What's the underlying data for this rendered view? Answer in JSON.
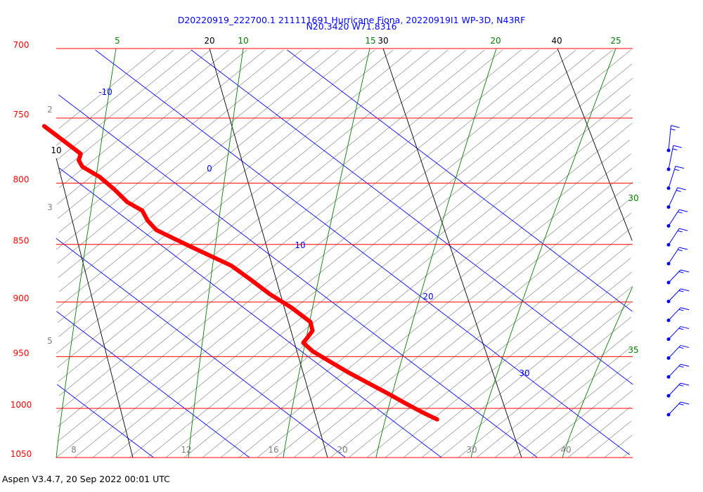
{
  "title": {
    "line1": "D20220919_222700.1 211111691 Hurricane Fiona, 20220919I1 WP-3D, N43RF",
    "line2": "N20.3420 W71.8316"
  },
  "footer": "Aspen V3.4.7, 20 Sep 2022  00:01 UTC",
  "colors": {
    "isobar": "#ff0000",
    "isotherm": "#0000ff",
    "dry_adiabat": "#000000",
    "moist_adiabat": "#008000",
    "mixing_ratio": "#808080",
    "sounding": "#ff0000",
    "wind_barb": "#0000ff"
  },
  "chart_data": {
    "type": "line",
    "chart_kind": "skew-T log-P thermodynamic diagram",
    "y_axis": {
      "quantity": "pressure",
      "scale": "log",
      "range": [
        1050,
        700
      ],
      "tick_labels": [
        "700",
        "750",
        "800",
        "850",
        "900",
        "950",
        "1000",
        "1050"
      ]
    },
    "isotherms": [
      {
        "label": "-10",
        "value": -10
      },
      {
        "label": "0",
        "value": 0
      },
      {
        "label": "10",
        "value": 10
      },
      {
        "label": "20",
        "value": 20
      },
      {
        "label": "30",
        "value": 30
      }
    ],
    "dry_adiabats": [
      {
        "label": "10",
        "value": 10
      },
      {
        "label": "20",
        "value": 20
      },
      {
        "label": "30",
        "value": 30
      },
      {
        "label": "40",
        "value": 40
      }
    ],
    "moist_adiabats": [
      {
        "label": "5",
        "value": 5
      },
      {
        "label": "10",
        "value": 10
      },
      {
        "label": "15",
        "value": 15
      },
      {
        "label": "20",
        "value": 20
      },
      {
        "label": "25",
        "value": 25
      },
      {
        "label": "30",
        "value": 30
      },
      {
        "label": "35",
        "value": 35
      }
    ],
    "mixing_ratio_labels_left": [
      "2",
      "3",
      "5"
    ],
    "mixing_ratio_labels_bottom": [
      "8",
      "12",
      "16",
      "20",
      "30",
      "40"
    ],
    "series": [
      {
        "points": [
          {
            "p": 1011,
            "t": 24.8
          },
          {
            "p": 1005,
            "t": 24.3
          },
          {
            "p": 995,
            "t": 23.7
          },
          {
            "p": 985,
            "t": 23.2
          },
          {
            "p": 975,
            "t": 22.6
          },
          {
            "p": 965,
            "t": 22.0
          },
          {
            "p": 955,
            "t": 21.6
          },
          {
            "p": 945,
            "t": 21.2
          },
          {
            "p": 937,
            "t": 21.4
          },
          {
            "p": 932,
            "t": 22.6
          },
          {
            "p": 926,
            "t": 24.0
          },
          {
            "p": 918,
            "t": 25.0
          },
          {
            "p": 905,
            "t": 25.0
          },
          {
            "p": 893,
            "t": 24.6
          },
          {
            "p": 880,
            "t": 24.6
          },
          {
            "p": 868,
            "t": 24.5
          },
          {
            "p": 852,
            "t": 22.9
          },
          {
            "p": 838,
            "t": 21.6
          },
          {
            "p": 830,
            "t": 22.0
          },
          {
            "p": 822,
            "t": 22.8
          },
          {
            "p": 815,
            "t": 22.4
          },
          {
            "p": 805,
            "t": 22.8
          },
          {
            "p": 795,
            "t": 23.0
          },
          {
            "p": 787,
            "t": 22.6
          },
          {
            "p": 782,
            "t": 23.1
          },
          {
            "p": 777,
            "t": 24.2
          },
          {
            "p": 769,
            "t": 24.2
          },
          {
            "p": 762,
            "t": 24.2
          },
          {
            "p": 756,
            "t": 24.2
          }
        ]
      }
    ],
    "wind_barbs": [
      {
        "p": 1004,
        "dir": 60,
        "speed": 15
      },
      {
        "p": 997,
        "dir": 60,
        "speed": 15
      },
      {
        "p": 990,
        "dir": 60,
        "speed": 15
      },
      {
        "p": 982,
        "dir": 60,
        "speed": 15
      },
      {
        "p": 974,
        "dir": 60,
        "speed": 15
      },
      {
        "p": 966,
        "dir": 60,
        "speed": 15
      },
      {
        "p": 958,
        "dir": 60,
        "speed": 15
      },
      {
        "p": 950,
        "dir": 60,
        "speed": 15
      },
      {
        "p": 942,
        "dir": 50,
        "speed": 15
      },
      {
        "p": 934,
        "dir": 50,
        "speed": 15
      },
      {
        "p": 926,
        "dir": 50,
        "speed": 15
      },
      {
        "p": 918,
        "dir": 40,
        "speed": 15
      },
      {
        "p": 910,
        "dir": 30,
        "speed": 15
      },
      {
        "p": 902,
        "dir": 20,
        "speed": 15
      },
      {
        "p": 894,
        "dir": 10,
        "speed": 15
      }
    ]
  }
}
